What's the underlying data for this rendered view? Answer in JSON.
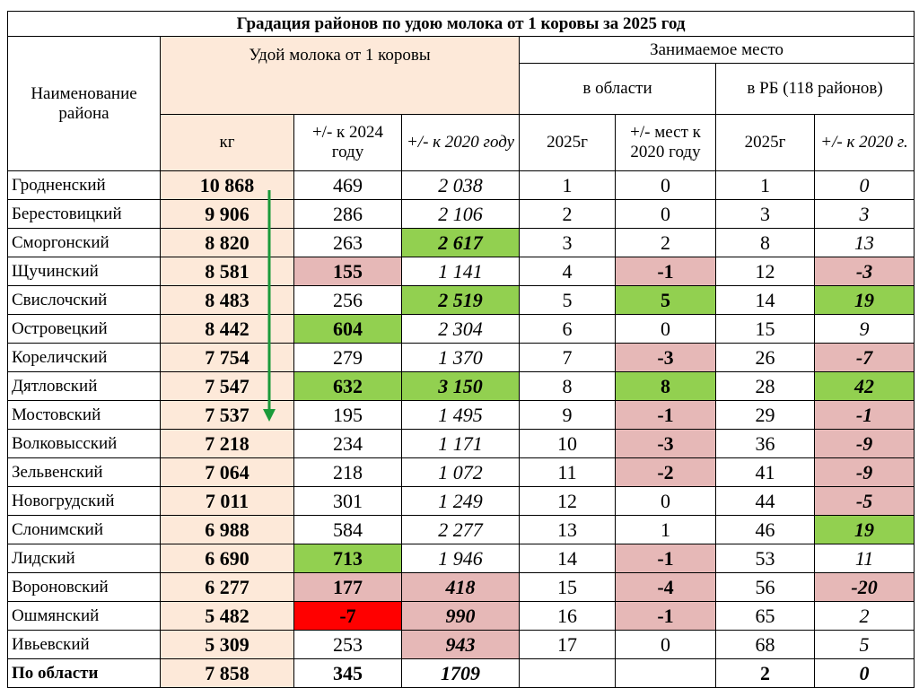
{
  "header": {
    "title": "Градация районов по удою молока от 1 коровы за 2025 год",
    "name": "Наименование района",
    "yield": "Удой молока от 1 коровы",
    "place": "Занимаемое место",
    "region": "в области",
    "rb": "в РБ (118 районов)",
    "columns": [
      "кг",
      "+/- к 2024 году",
      "+/- к 2020 году",
      "2025г",
      "+/- мест к 2020 году",
      "2025г",
      "+/- к 2020 г."
    ]
  },
  "fills": {
    "g": "#92d050",
    "p": "#e6b8b7",
    "r": "#ff0000"
  },
  "table": {
    "rows": [
      {
        "cells": [
          "Гродненский",
          "10 868",
          "469",
          "2 038",
          "1",
          "0",
          "1",
          "0"
        ],
        "fill": {}
      },
      {
        "cells": [
          "Берестовицкий",
          "9 906",
          "286",
          "2 106",
          "2",
          "0",
          "3",
          "3"
        ],
        "fill": {}
      },
      {
        "cells": [
          "Сморгонский",
          "8 820",
          "263",
          "2 617",
          "3",
          "2",
          "8",
          "13"
        ],
        "fill": {
          "3": "g"
        }
      },
      {
        "cells": [
          "Щучинский",
          "8 581",
          "155",
          "1 141",
          "4",
          "-1",
          "12",
          "-3"
        ],
        "fill": {
          "2": "p",
          "5": "p",
          "7": "p"
        }
      },
      {
        "cells": [
          "Свислочский",
          "8 483",
          "256",
          "2 519",
          "5",
          "5",
          "14",
          "19"
        ],
        "fill": {
          "3": "g",
          "5": "g",
          "7": "g"
        }
      },
      {
        "cells": [
          "Островецкий",
          "8 442",
          "604",
          "2 304",
          "6",
          "0",
          "15",
          "9"
        ],
        "fill": {
          "2": "g"
        }
      },
      {
        "cells": [
          "Кореличский",
          "7 754",
          "279",
          "1 370",
          "7",
          "-3",
          "26",
          "-7"
        ],
        "fill": {
          "5": "p",
          "7": "p"
        }
      },
      {
        "cells": [
          "Дятловский",
          "7 547",
          "632",
          "3 150",
          "8",
          "8",
          "28",
          "42"
        ],
        "fill": {
          "2": "g",
          "3": "g",
          "5": "g",
          "7": "g"
        }
      },
      {
        "cells": [
          "Мостовский",
          "7 537",
          "195",
          "1 495",
          "9",
          "-1",
          "29",
          "-1"
        ],
        "fill": {
          "5": "p",
          "7": "p"
        }
      },
      {
        "cells": [
          "Волковысский",
          "7 218",
          "234",
          "1 171",
          "10",
          "-3",
          "36",
          "-9"
        ],
        "fill": {
          "5": "p",
          "7": "p"
        }
      },
      {
        "cells": [
          "Зельвенский",
          "7 064",
          "218",
          "1 072",
          "11",
          "-2",
          "41",
          "-9"
        ],
        "fill": {
          "5": "p",
          "7": "p"
        }
      },
      {
        "cells": [
          "Новогрудский",
          "7 011",
          "301",
          "1 249",
          "12",
          "0",
          "44",
          "-5"
        ],
        "fill": {
          "7": "p"
        }
      },
      {
        "cells": [
          "Слонимский",
          "6 988",
          "584",
          "2 277",
          "13",
          "1",
          "46",
          "19"
        ],
        "fill": {
          "7": "g"
        }
      },
      {
        "cells": [
          "Лидский",
          "6 690",
          "713",
          "1 946",
          "14",
          "-1",
          "53",
          "11"
        ],
        "fill": {
          "2": "g",
          "5": "p"
        }
      },
      {
        "cells": [
          "Вороновский",
          "6 277",
          "177",
          "418",
          "15",
          "-4",
          "56",
          "-20"
        ],
        "fill": {
          "2": "p",
          "3": "p",
          "5": "p",
          "7": "p"
        }
      },
      {
        "cells": [
          "Ошмянский",
          "5 482",
          "-7",
          "990",
          "16",
          "-1",
          "65",
          "2"
        ],
        "fill": {
          "2": "r",
          "3": "p",
          "5": "p"
        }
      },
      {
        "cells": [
          "Ивьевский",
          "5 309",
          "253",
          "943",
          "17",
          "0",
          "68",
          "5"
        ],
        "fill": {
          "3": "p"
        }
      },
      {
        "cells": [
          "По области",
          "7 858",
          "345",
          "1709",
          null,
          null,
          "2",
          "0"
        ],
        "fill": {},
        "total": true
      }
    ]
  }
}
